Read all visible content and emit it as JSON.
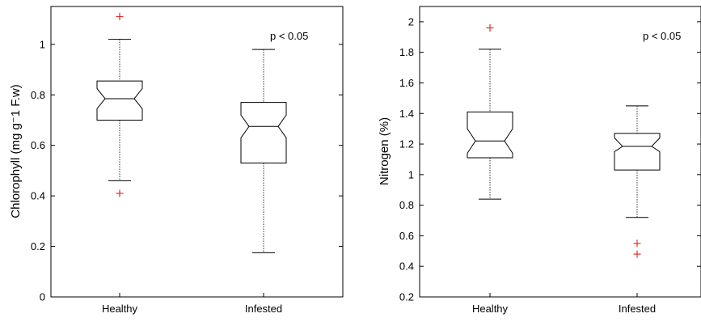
{
  "chart_data": [
    {
      "type": "boxplot",
      "ylabel": "Chlorophyll (mg g⁻1 F.w)",
      "annotation": "p < 0.05",
      "categories": [
        "Healthy",
        "Infested"
      ],
      "ylim": [
        0,
        1.15
      ],
      "yticks": [
        0,
        0.2,
        0.4,
        0.6,
        0.8,
        1
      ],
      "ytick_labels": [
        "0",
        "0.2",
        "0.4",
        "0.6",
        "0.8",
        "1"
      ],
      "boxes": [
        {
          "name": "Healthy",
          "whisker_low": 0.46,
          "q1": 0.7,
          "median": 0.785,
          "q3": 0.855,
          "whisker_high": 1.02,
          "notch_low": 0.745,
          "notch_high": 0.825,
          "outliers": [
            1.11,
            0.41
          ]
        },
        {
          "name": "Infested",
          "whisker_low": 0.175,
          "q1": 0.53,
          "median": 0.675,
          "q3": 0.77,
          "whisker_high": 0.98,
          "notch_low": 0.63,
          "notch_high": 0.72,
          "outliers": []
        }
      ],
      "grid": false,
      "outlier_color": "#e0302a"
    },
    {
      "type": "boxplot",
      "ylabel": "Nitrogen (%)",
      "annotation": "p < 0.05",
      "categories": [
        "Healthy",
        "Infested"
      ],
      "ylim": [
        0.2,
        2.1
      ],
      "yticks": [
        0.2,
        0.4,
        0.6,
        0.8,
        1,
        1.2,
        1.4,
        1.6,
        1.8,
        2
      ],
      "ytick_labels": [
        "0.2",
        "0.4",
        "0.6",
        "0.8",
        "1",
        "1.2",
        "1.4",
        "1.6",
        "1.8",
        "2"
      ],
      "boxes": [
        {
          "name": "Healthy",
          "whisker_low": 0.84,
          "q1": 1.11,
          "median": 1.22,
          "q3": 1.41,
          "whisker_high": 1.82,
          "notch_low": 1.14,
          "notch_high": 1.3,
          "outliers": [
            1.96
          ]
        },
        {
          "name": "Infested",
          "whisker_low": 0.72,
          "q1": 1.03,
          "median": 1.185,
          "q3": 1.27,
          "whisker_high": 1.45,
          "notch_low": 1.15,
          "notch_high": 1.24,
          "outliers": [
            0.55,
            0.48
          ]
        }
      ],
      "grid": false,
      "outlier_color": "#e0302a"
    }
  ]
}
